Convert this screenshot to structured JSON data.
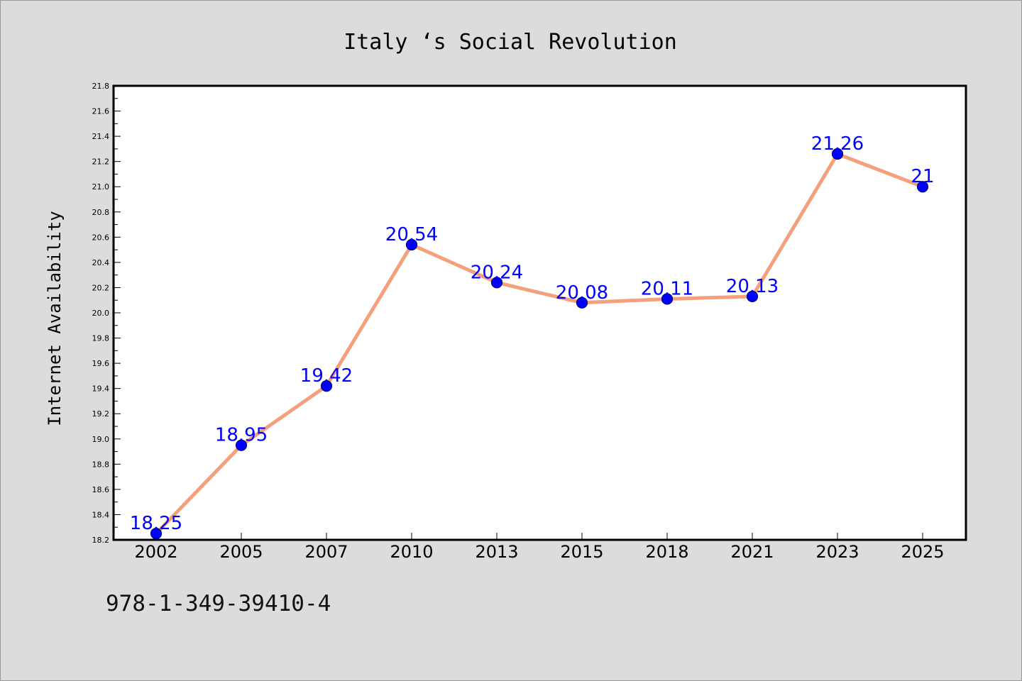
{
  "chart_data": {
    "type": "line",
    "title": "Italy ‘s Social Revolution",
    "ylabel": "Internet Availability",
    "xlabel": "",
    "categories": [
      "2002",
      "2005",
      "2007",
      "2010",
      "2013",
      "2015",
      "2018",
      "2021",
      "2023",
      "2025"
    ],
    "series": [
      {
        "values": [
          18.25,
          18.95,
          19.42,
          20.54,
          20.24,
          20.08,
          20.11,
          20.13,
          21.26,
          21
        ],
        "data_labels": [
          "18.25",
          "18.95",
          "19.42",
          "20.54",
          "20.24",
          "20.08",
          "20.11",
          "20.13",
          "21.26",
          "21"
        ]
      }
    ],
    "ylim": [
      18.2,
      21.8
    ],
    "yticks": [
      "18.2",
      "18.4",
      "18.6",
      "18.8",
      "19.0",
      "19.2",
      "19.4",
      "19.6",
      "19.8",
      "20.0",
      "20.2",
      "20.4",
      "20.6",
      "20.8",
      "21.0",
      "21.2",
      "21.4",
      "21.6",
      "21.8"
    ],
    "grid": false,
    "legend": "none",
    "colors": {
      "line": "#f4a07c",
      "marker": "#0000ff",
      "data_label": "#0000ff",
      "plot_background": "#ffffff",
      "figure_background": "#dcdcdc"
    }
  },
  "footer": {
    "code": "978-1-349-39410-4"
  }
}
